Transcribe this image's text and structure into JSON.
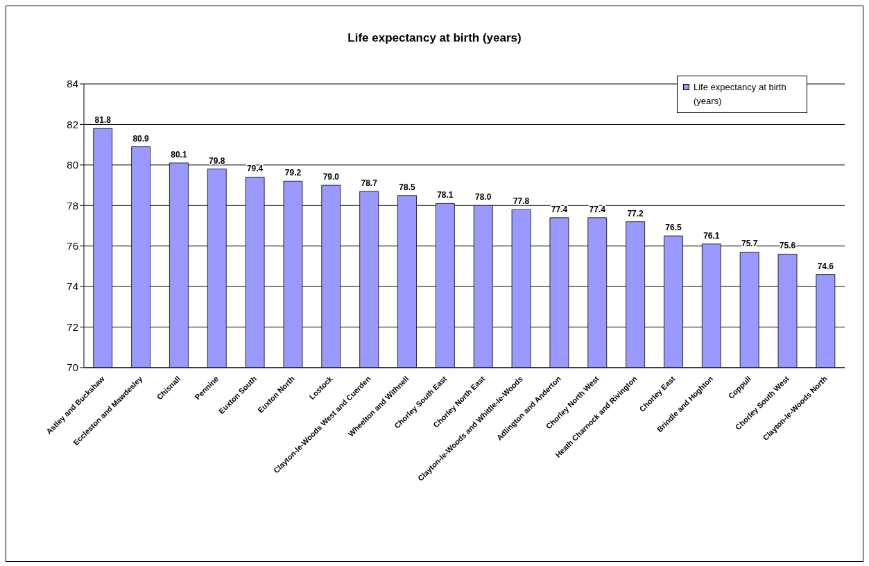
{
  "chart_data": {
    "type": "bar",
    "title": "Life expectancy at birth (years)",
    "categories": [
      "Astley and Buckshaw",
      "Eccleston and Mawdesley",
      "Chisnall",
      "Pennine",
      "Euxton South",
      "Euxton North",
      "Lostock",
      "Clayton-le-Woods West and Cuerden",
      "Wheelton and Withnell",
      "Chorley South East",
      "Chorley North East",
      "Clayton-le-Woods and Whittle-le-Woods",
      "Adlington and Anderton",
      "Chorley North West",
      "Heath Charnock and Rivington",
      "Chorley East",
      "Brindle and Hoghton",
      "Coppull",
      "Chorley South West",
      "Clayton-le-Woods North"
    ],
    "series": [
      {
        "name": "Life expectancy at birth (years)",
        "color": "#9999ff",
        "values": [
          81.8,
          80.9,
          80.1,
          79.8,
          79.4,
          79.2,
          79.0,
          78.7,
          78.5,
          78.1,
          78.0,
          77.8,
          77.4,
          77.4,
          77.2,
          76.5,
          76.1,
          75.7,
          75.6,
          74.6
        ],
        "value_labels": [
          "81.8",
          "80.9",
          "80.1",
          "79.8",
          "79.4",
          "79.2",
          "79.0",
          "78.7",
          "78.5",
          "78.1",
          "78.0",
          "77.8",
          "77.4",
          "77.4",
          "77.2",
          "76.5",
          "76.1",
          "75.7",
          "75.6",
          "74.6"
        ]
      }
    ],
    "ylim": [
      70,
      84
    ],
    "yticks": [
      70,
      72,
      74,
      76,
      78,
      80,
      82,
      84
    ],
    "grid": "y",
    "legend": "top right"
  }
}
